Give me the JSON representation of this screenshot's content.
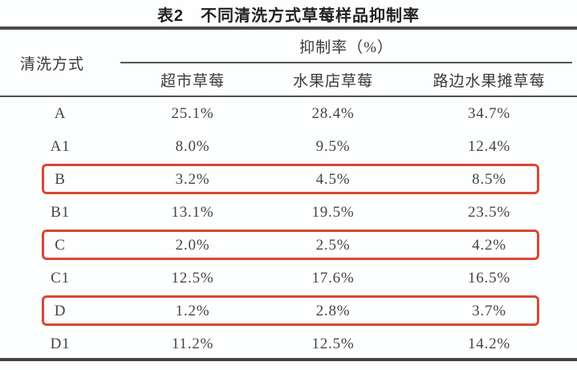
{
  "title": "表2　不同清洗方式草莓样品抑制率",
  "accent_color": "#d94732",
  "table": {
    "col1_header": "清洗方式",
    "group_header": "抑制率（%）",
    "sub_headers": [
      "超市草莓",
      "水果店草莓",
      "路边水果摊草莓"
    ],
    "rows": [
      {
        "method": "A",
        "values": [
          "25.1%",
          "28.4%",
          "34.7%"
        ],
        "highlight": false
      },
      {
        "method": "A1",
        "values": [
          "8.0%",
          "9.5%",
          "12.4%"
        ],
        "highlight": false
      },
      {
        "method": "B",
        "values": [
          "3.2%",
          "4.5%",
          "8.5%"
        ],
        "highlight": true
      },
      {
        "method": "B1",
        "values": [
          "13.1%",
          "19.5%",
          "23.5%"
        ],
        "highlight": false
      },
      {
        "method": "C",
        "values": [
          "2.0%",
          "2.5%",
          "4.2%"
        ],
        "highlight": true
      },
      {
        "method": "C1",
        "values": [
          "12.5%",
          "17.6%",
          "16.5%"
        ],
        "highlight": false
      },
      {
        "method": "D",
        "values": [
          "1.2%",
          "2.8%",
          "3.7%"
        ],
        "highlight": true
      },
      {
        "method": "D1",
        "values": [
          "11.2%",
          "12.5%",
          "14.2%"
        ],
        "highlight": false
      }
    ]
  }
}
